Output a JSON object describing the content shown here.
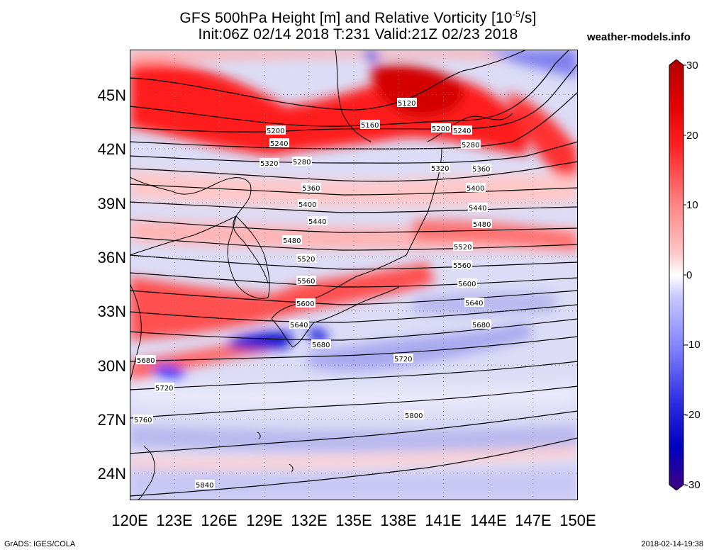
{
  "header": {
    "title_line1": "GFS 500hPa Height [m] and Relative Vorticity [10",
    "title_exp": "-5",
    "title_line1_end": "/s]",
    "title_line2": "Init:06Z 02/14 2018 T:231 Valid:21Z 02/23 2018",
    "site": "weather-models.info"
  },
  "footer": {
    "left": "GrADS: IGES/COLA",
    "right": "2018-02-14-19:38"
  },
  "axes": {
    "lat_labels": [
      "45N",
      "42N",
      "39N",
      "36N",
      "33N",
      "30N",
      "27N",
      "24N"
    ],
    "lon_labels": [
      "120E",
      "123E",
      "126E",
      "129E",
      "132E",
      "135E",
      "138E",
      "141E",
      "144E",
      "147E",
      "150E"
    ],
    "lat_range": [
      22.5,
      47.5
    ],
    "lon_range": [
      120,
      150
    ]
  },
  "colorbar": {
    "labels": [
      "30",
      "20",
      "10",
      "0",
      "-10",
      "-20",
      "-30"
    ],
    "range": [
      -30,
      30
    ],
    "colors": [
      "#400080",
      "#0000c0",
      "#2a2ae0",
      "#8080ff",
      "#c8c8ff",
      "#ffffff",
      "#ffc8c8",
      "#ff8080",
      "#ff2020",
      "#e00000",
      "#b00000"
    ]
  },
  "contours": {
    "labels": [
      "5120",
      "5160",
      "5200",
      "5240",
      "5280",
      "5320",
      "5360",
      "5400",
      "5440",
      "5480",
      "5520",
      "5560",
      "5600",
      "5640",
      "5680",
      "5720",
      "5760",
      "5800",
      "5840"
    ]
  }
}
